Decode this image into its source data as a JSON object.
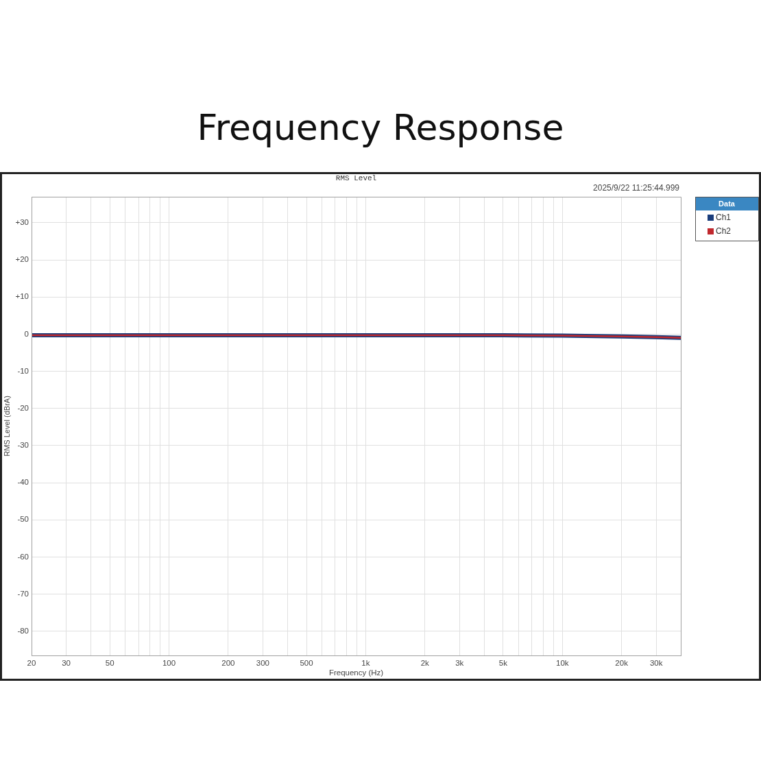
{
  "chart_data": {
    "type": "line",
    "title": "Frequency Response",
    "subtitle": "RMS Level",
    "xlabel": "Frequency (Hz)",
    "ylabel": "RMS Level (dBrA)",
    "legend_title": "Data",
    "annotations": [
      "2025/9/22 11:25:44.999"
    ],
    "x": [
      20,
      50,
      100,
      200,
      500,
      1000,
      2000,
      5000,
      10000,
      15000,
      20000,
      30000,
      40000
    ],
    "series": [
      {
        "name": "Ch1",
        "color": "#1a3d7c",
        "values": [
          -0.3,
          -0.3,
          -0.3,
          -0.3,
          -0.3,
          -0.3,
          -0.3,
          -0.3,
          -0.4,
          -0.5,
          -0.6,
          -0.8,
          -1.0
        ]
      },
      {
        "name": "Ch2",
        "color": "#c0282d",
        "values": [
          -0.3,
          -0.3,
          -0.3,
          -0.3,
          -0.3,
          -0.3,
          -0.3,
          -0.3,
          -0.4,
          -0.5,
          -0.6,
          -0.8,
          -1.0
        ]
      }
    ],
    "log": "x",
    "xlim": [
      20,
      40000
    ],
    "ylim": [
      -86.5,
      37
    ],
    "xticks": [
      20,
      30,
      {
        "value": 40,
        "label": null
      },
      50,
      {
        "value": 60,
        "label": null
      },
      {
        "value": 70,
        "label": null
      },
      {
        "value": 80,
        "label": null
      },
      {
        "value": 90,
        "label": null
      },
      100,
      200,
      300,
      {
        "value": 400,
        "label": null
      },
      500,
      {
        "value": 600,
        "label": null
      },
      {
        "value": 700,
        "label": null
      },
      {
        "value": 800,
        "label": null
      },
      {
        "value": 900,
        "label": null
      },
      {
        "value": 1000,
        "label": "1k"
      },
      {
        "value": 2000,
        "label": "2k"
      },
      {
        "value": 3000,
        "label": "3k"
      },
      {
        "value": 4000,
        "label": null
      },
      {
        "value": 5000,
        "label": "5k"
      },
      {
        "value": 6000,
        "label": null
      },
      {
        "value": 7000,
        "label": null
      },
      {
        "value": 8000,
        "label": null
      },
      {
        "value": 9000,
        "label": null
      },
      {
        "value": 10000,
        "label": "10k"
      },
      {
        "value": 20000,
        "label": "20k"
      },
      {
        "value": 30000,
        "label": "30k"
      }
    ],
    "yticks": [
      {
        "value": 30,
        "label": "+30"
      },
      {
        "value": 20,
        "label": "+20"
      },
      {
        "value": 10,
        "label": "+10"
      },
      0,
      -10,
      -20,
      -30,
      -40,
      -50,
      -60,
      -70,
      -80
    ],
    "grid": true,
    "legend": "right",
    "marker": "none",
    "line_style": "solid"
  }
}
